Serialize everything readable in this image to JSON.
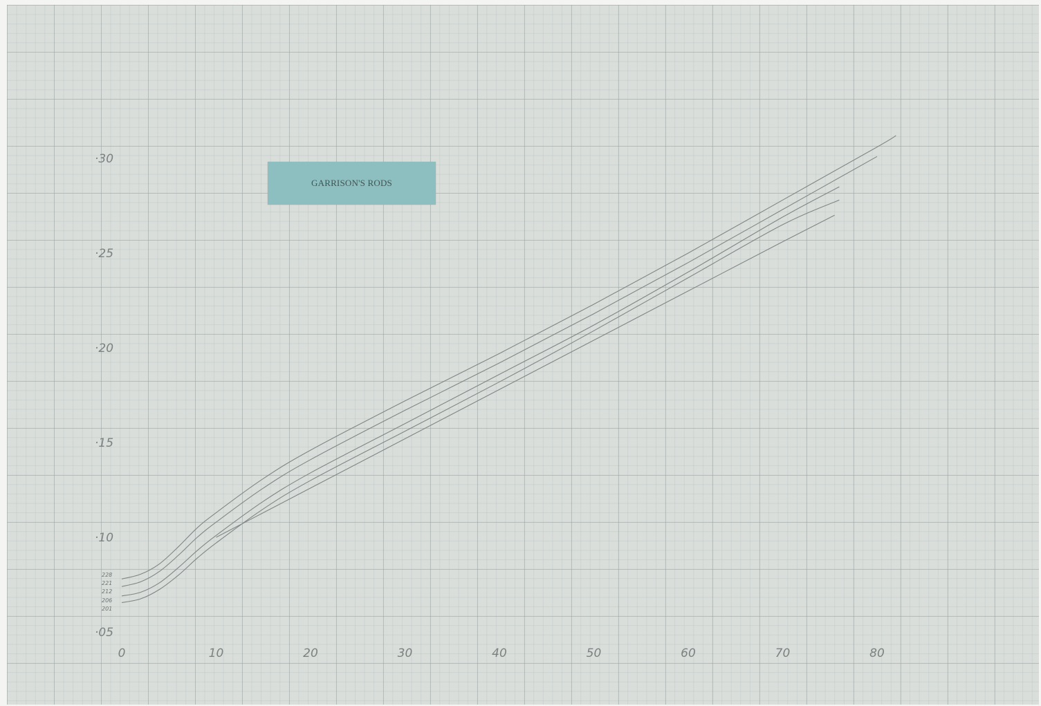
{
  "chart_data": {
    "type": "line",
    "title": "GARRISON'S RODS",
    "xlabel": "",
    "ylabel": "",
    "xlim": [
      0,
      90
    ],
    "ylim": [
      0.045,
      0.33
    ],
    "x_ticks": [
      "0",
      "10",
      "20",
      "30",
      "40",
      "50",
      "60",
      "70",
      "80"
    ],
    "x_tick_values": [
      0,
      10,
      20,
      30,
      40,
      50,
      60,
      70,
      80
    ],
    "y_ticks": [
      "·05",
      "·10",
      "·15",
      "·20",
      "·25",
      "·30"
    ],
    "y_tick_values": [
      0.05,
      0.1,
      0.15,
      0.2,
      0.25,
      0.3
    ],
    "grid": true,
    "series": [
      {
        "name": "228",
        "x": [
          0,
          2,
          4,
          6,
          8,
          10,
          15,
          20,
          30,
          40,
          50,
          60,
          70,
          80,
          82
        ],
        "y": [
          0.078,
          0.0805,
          0.086,
          0.095,
          0.105,
          0.113,
          0.131,
          0.146,
          0.172,
          0.197,
          0.223,
          0.25,
          0.278,
          0.306,
          0.312
        ]
      },
      {
        "name": "221",
        "x": [
          0,
          2,
          4,
          6,
          8,
          10,
          15,
          20,
          30,
          40,
          50,
          60,
          70,
          80
        ],
        "y": [
          0.074,
          0.0765,
          0.082,
          0.0905,
          0.1,
          0.108,
          0.126,
          0.141,
          0.167,
          0.192,
          0.218,
          0.245,
          0.273,
          0.301
        ]
      },
      {
        "name": "212",
        "x": [
          0,
          2,
          4,
          6,
          8,
          10,
          15,
          20,
          30,
          40,
          50,
          60,
          70,
          76
        ],
        "y": [
          0.069,
          0.071,
          0.076,
          0.084,
          0.093,
          0.101,
          0.119,
          0.134,
          0.16,
          0.186,
          0.212,
          0.24,
          0.269,
          0.285
        ]
      },
      {
        "name": "206",
        "x": [
          0,
          2,
          4,
          6,
          8,
          10,
          15,
          20,
          30,
          40,
          50,
          60,
          70,
          76
        ],
        "y": [
          0.0655,
          0.0675,
          0.0725,
          0.08,
          0.089,
          0.097,
          0.115,
          0.13,
          0.156,
          0.182,
          0.209,
          0.237,
          0.265,
          0.278
        ]
      },
      {
        "name": "201",
        "x": [
          10,
          15,
          20,
          30,
          40,
          50,
          60,
          70,
          75.5
        ],
        "y": [
          0.1,
          0.113,
          0.126,
          0.152,
          0.178,
          0.204,
          0.23,
          0.256,
          0.27
        ]
      }
    ]
  },
  "series_labels": [
    "228",
    "221",
    "212",
    "206",
    "201"
  ],
  "colors": {
    "paper": "#d9dedb",
    "line": "#7f8684",
    "card": "#8ebfc0",
    "ink": "#7b8280"
  }
}
